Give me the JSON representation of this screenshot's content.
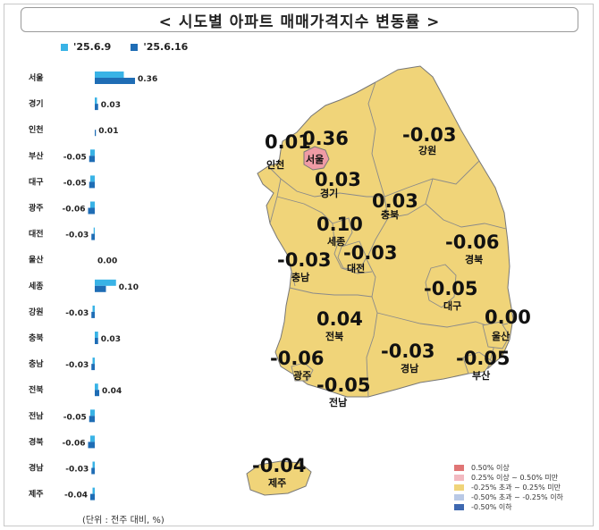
{
  "title": "< 시도별 아파트 매매가격지수 변동률 >",
  "legend": {
    "series1": "'25.6.9",
    "series2": "'25.6.16"
  },
  "unit_note": "(단위 : 전주 대비, %)",
  "colors": {
    "series1": "#39b3e6",
    "series2": "#1f6db5",
    "map_default": "#f0d479",
    "map_seoul": "#ef9ba5",
    "map_border": "#777777"
  },
  "chart_data": {
    "type": "bar",
    "orientation": "horizontal",
    "categories": [
      "서울",
      "경기",
      "인천",
      "부산",
      "대구",
      "광주",
      "대전",
      "울산",
      "세종",
      "강원",
      "충북",
      "충남",
      "전북",
      "전남",
      "경북",
      "경남",
      "제주"
    ],
    "series": [
      {
        "name": "'25.6.9",
        "values": [
          0.26,
          0.02,
          0.0,
          -0.04,
          -0.04,
          -0.04,
          -0.01,
          0.0,
          0.19,
          -0.02,
          0.03,
          -0.02,
          0.03,
          -0.04,
          -0.04,
          -0.02,
          -0.02
        ]
      },
      {
        "name": "'25.6.16",
        "values": [
          0.36,
          0.03,
          0.01,
          -0.05,
          -0.05,
          -0.06,
          -0.03,
          0.0,
          0.1,
          -0.03,
          0.03,
          -0.03,
          0.04,
          -0.05,
          -0.06,
          -0.03,
          -0.04
        ]
      }
    ],
    "data_labels": [
      "0.36",
      "0.03",
      "0.01",
      "-0.05",
      "-0.05",
      "-0.06",
      "-0.03",
      "0.00",
      "0.10",
      "-0.03",
      "0.03",
      "-0.03",
      "0.04",
      "-0.05",
      "-0.06",
      "-0.03",
      "-0.04"
    ]
  },
  "map": {
    "regions": [
      {
        "name": "서울",
        "value": "0.36"
      },
      {
        "name": "인천",
        "value": "0.01"
      },
      {
        "name": "경기",
        "value": "0.03"
      },
      {
        "name": "강원",
        "value": "-0.03"
      },
      {
        "name": "충북",
        "value": "0.03"
      },
      {
        "name": "세종",
        "value": "0.10"
      },
      {
        "name": "대전",
        "value": "-0.03"
      },
      {
        "name": "충남",
        "value": "-0.03"
      },
      {
        "name": "경북",
        "value": "-0.06"
      },
      {
        "name": "대구",
        "value": "-0.05"
      },
      {
        "name": "전북",
        "value": "0.04"
      },
      {
        "name": "울산",
        "value": "0.00"
      },
      {
        "name": "광주",
        "value": "-0.06"
      },
      {
        "name": "경남",
        "value": "-0.03"
      },
      {
        "name": "부산",
        "value": "-0.05"
      },
      {
        "name": "전남",
        "value": "-0.05"
      },
      {
        "name": "제주",
        "value": "-0.04"
      }
    ],
    "legend": [
      {
        "label": "0.50% 이상",
        "color": "#e07575"
      },
      {
        "label": "0.25% 이상 ~ 0.50% 미만",
        "color": "#f2b9c0"
      },
      {
        "label": "-0.25% 초과 ~ 0.25% 미만",
        "color": "#f0d479"
      },
      {
        "label": "-0.50% 초과 ~ -0.25% 이하",
        "color": "#b9c9e6"
      },
      {
        "label": "-0.50% 이하",
        "color": "#3e68b0"
      }
    ]
  }
}
